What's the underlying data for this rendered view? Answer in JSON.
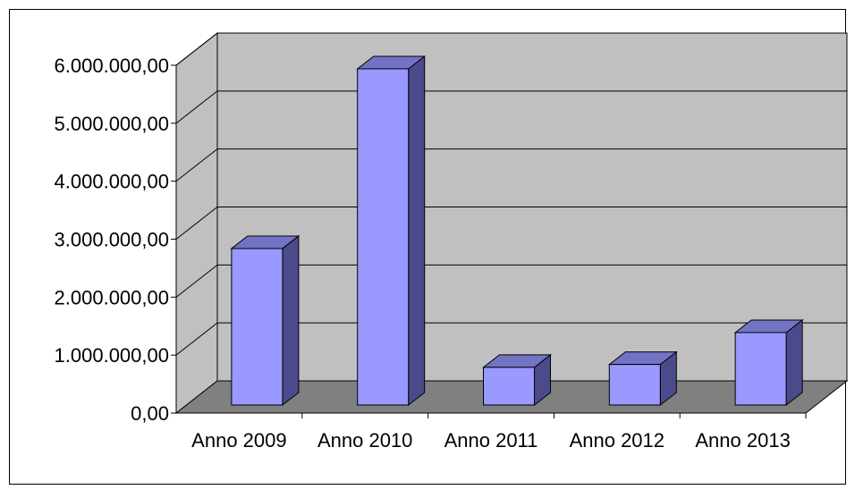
{
  "chart_data": {
    "type": "bar",
    "style": "3d-column",
    "categories": [
      "Anno 2009",
      "Anno 2010",
      "Anno 2011",
      "Anno 2012",
      "Anno 2013"
    ],
    "values": [
      2700000,
      5800000,
      650000,
      700000,
      1250000
    ],
    "y_ticks": [
      "0,00",
      "1.000.000,00",
      "2.000.000,00",
      "3.000.000,00",
      "4.000.000,00",
      "5.000.000,00",
      "6.000.000,00"
    ],
    "ylim": [
      0,
      6000000
    ],
    "grid": true,
    "legend": "none",
    "colors": {
      "bar_front": "#9999ff",
      "bar_side": "#4b4b8c",
      "bar_top": "#7373c6",
      "wall": "#c0c0c0",
      "floor": "#808080",
      "border": "#000000"
    }
  }
}
